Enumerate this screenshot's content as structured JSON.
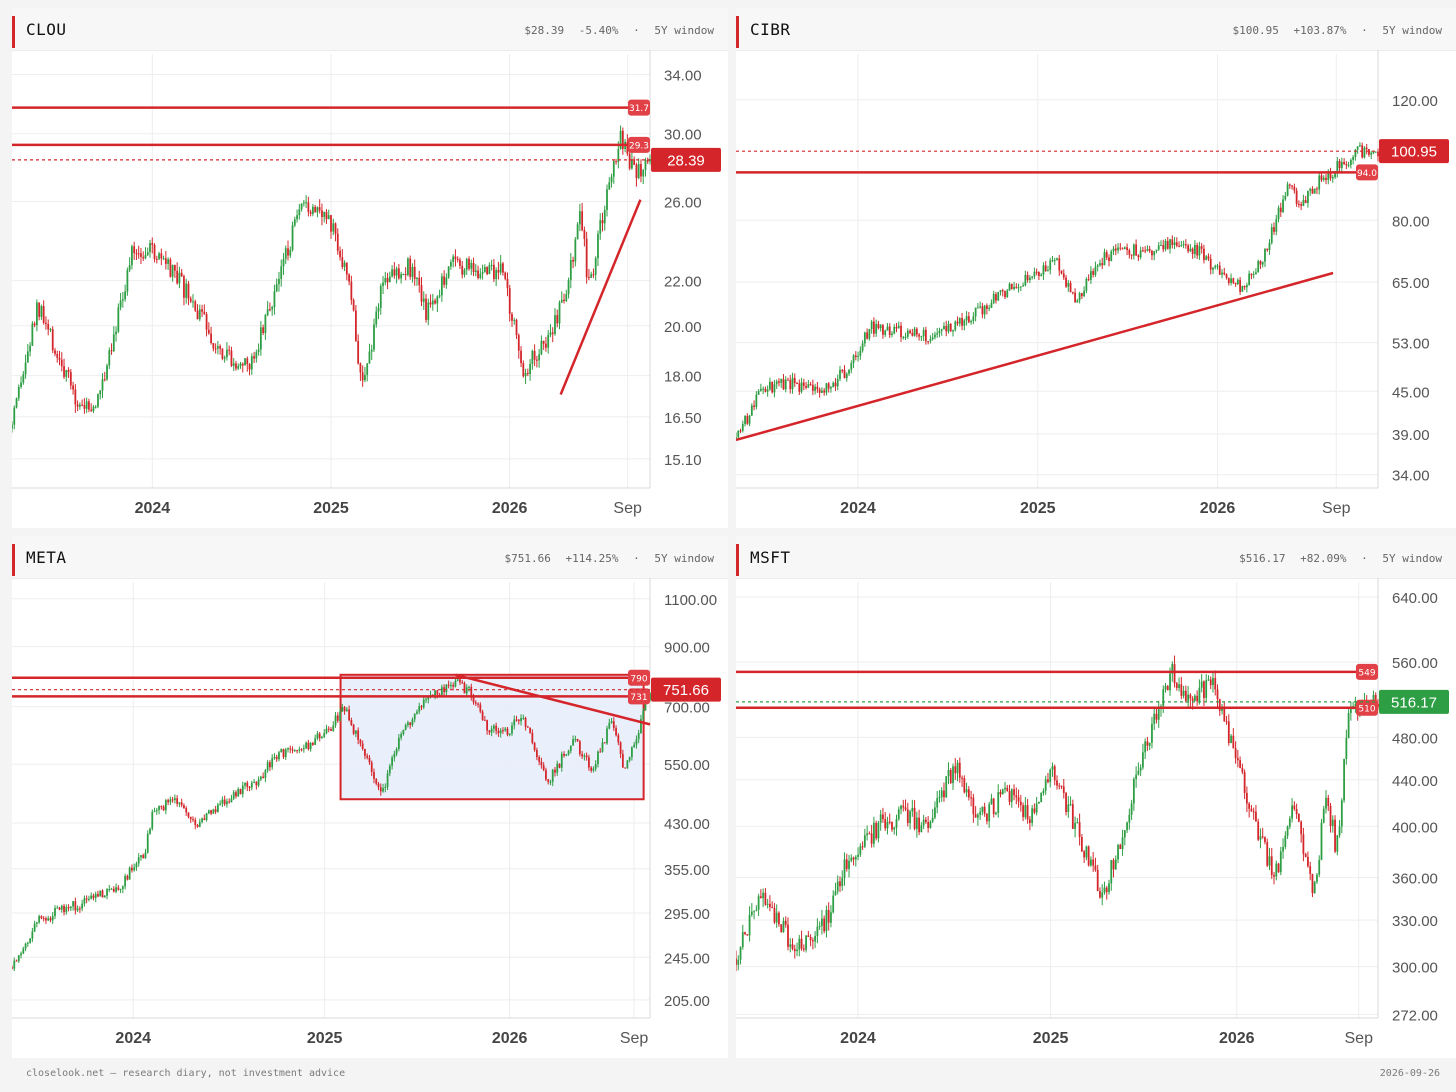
{
  "footer": {
    "left": "closelook.net — research diary, not investment advice",
    "right": "2026-09-26"
  },
  "colors": {
    "accent": "#d4262a",
    "up": "#2e9e44",
    "down": "#d4262a",
    "box_fill": "#e6ecfb",
    "grid": "#eeeeee"
  },
  "panels": [
    {
      "ticker": "CLOU",
      "price": "$28.39",
      "change": "-5.40%",
      "sep": "·",
      "window": "5Y window"
    },
    {
      "ticker": "CIBR",
      "price": "$100.95",
      "change": "+103.87%",
      "sep": "·",
      "window": "5Y window"
    },
    {
      "ticker": "META",
      "price": "$751.66",
      "change": "+114.25%",
      "sep": "·",
      "window": "5Y window"
    },
    {
      "ticker": "MSFT",
      "price": "$516.17",
      "change": "+82.09%",
      "sep": "·",
      "window": "5Y window"
    }
  ],
  "chart_data": [
    {
      "type": "line",
      "ticker": "CLOU",
      "scale": "log",
      "ylim": [
        14.2,
        35.5
      ],
      "yticks": [
        15.1,
        16.5,
        18.0,
        20.0,
        22.0,
        26.0,
        30.0,
        34.0
      ],
      "ytick_labels": [
        "15.10",
        "16.50",
        "18.00",
        "20.00",
        "22.00",
        "26.00",
        "30.00",
        "34.00"
      ],
      "xticks": [
        {
          "t": 0.22,
          "label": "2024"
        },
        {
          "t": 0.5,
          "label": "2025"
        },
        {
          "t": 0.78,
          "label": "2026"
        },
        {
          "t": 0.965,
          "label": "Sep"
        }
      ],
      "current_price": {
        "value": 28.39,
        "label": "28.39",
        "color": "#d4262a"
      },
      "levels": [
        {
          "value": 31.7,
          "label": "31.7"
        },
        {
          "value": 29.3,
          "label": "29.3"
        }
      ],
      "trendlines": [
        {
          "t1": 0.86,
          "v1": 17.3,
          "t2": 0.985,
          "v2": 26.1
        }
      ],
      "boxes": [],
      "series_keys": [
        [
          0,
          16.1
        ],
        [
          0.04,
          20.8
        ],
        [
          0.06,
          19.5
        ],
        [
          0.1,
          17.1
        ],
        [
          0.13,
          16.7
        ],
        [
          0.19,
          23.5
        ],
        [
          0.22,
          23.4
        ],
        [
          0.26,
          22.0
        ],
        [
          0.32,
          19.3
        ],
        [
          0.37,
          18.2
        ],
        [
          0.4,
          20.5
        ],
        [
          0.45,
          25.3
        ],
        [
          0.48,
          26.0
        ],
        [
          0.51,
          24.0
        ],
        [
          0.53,
          21.5
        ],
        [
          0.55,
          17.4
        ],
        [
          0.58,
          22.0
        ],
        [
          0.62,
          22.8
        ],
        [
          0.65,
          20.6
        ],
        [
          0.69,
          23.0
        ],
        [
          0.73,
          22.4
        ],
        [
          0.77,
          22.5
        ],
        [
          0.8,
          18.2
        ],
        [
          0.84,
          19.5
        ],
        [
          0.87,
          21.5
        ],
        [
          0.89,
          25.5
        ],
        [
          0.905,
          21.5
        ],
        [
          0.93,
          26.0
        ],
        [
          0.955,
          29.8
        ],
        [
          0.975,
          27.5
        ],
        [
          1.0,
          28.39
        ]
      ]
    },
    {
      "type": "line",
      "ticker": "CIBR",
      "scale": "log",
      "ylim": [
        32.5,
        140
      ],
      "yticks": [
        34.0,
        39.0,
        45.0,
        53.0,
        65.0,
        80.0,
        120.0
      ],
      "ytick_labels": [
        "34.00",
        "39.00",
        "45.00",
        "53.00",
        "65.00",
        "80.00",
        "120.00"
      ],
      "xticks": [
        {
          "t": 0.19,
          "label": "2024"
        },
        {
          "t": 0.47,
          "label": "2025"
        },
        {
          "t": 0.75,
          "label": "2026"
        },
        {
          "t": 0.935,
          "label": "Sep"
        }
      ],
      "current_price": {
        "value": 100.95,
        "label": "100.95",
        "color": "#d4262a"
      },
      "levels": [
        {
          "value": 94.0,
          "label": "94.0"
        }
      ],
      "trendlines": [
        {
          "t1": 0.0,
          "v1": 38.2,
          "t2": 0.93,
          "v2": 67.0
        }
      ],
      "boxes": [],
      "series_keys": [
        [
          0,
          38.5
        ],
        [
          0.04,
          45.0
        ],
        [
          0.08,
          46.5
        ],
        [
          0.13,
          44.5
        ],
        [
          0.18,
          49.0
        ],
        [
          0.21,
          56.0
        ],
        [
          0.25,
          55.0
        ],
        [
          0.3,
          54.0
        ],
        [
          0.35,
          56.5
        ],
        [
          0.4,
          61.0
        ],
        [
          0.45,
          66.0
        ],
        [
          0.5,
          70.0
        ],
        [
          0.53,
          60.0
        ],
        [
          0.56,
          69.0
        ],
        [
          0.6,
          73.0
        ],
        [
          0.65,
          71.0
        ],
        [
          0.68,
          75.0
        ],
        [
          0.72,
          72.0
        ],
        [
          0.76,
          66.0
        ],
        [
          0.79,
          64.0
        ],
        [
          0.82,
          70.0
        ],
        [
          0.86,
          90.0
        ],
        [
          0.88,
          84.0
        ],
        [
          0.91,
          92.0
        ],
        [
          0.94,
          96.0
        ],
        [
          0.97,
          101.0
        ],
        [
          1.0,
          100.95
        ]
      ]
    },
    {
      "type": "line",
      "ticker": "META",
      "scale": "log",
      "ylim": [
        190,
        1180
      ],
      "yticks": [
        205.0,
        245.0,
        295.0,
        355.0,
        430.0,
        550.0,
        700.0,
        900.0,
        1100.0
      ],
      "ytick_labels": [
        "205.00",
        "245.00",
        "295.00",
        "355.00",
        "430.00",
        "550.00",
        "700.00",
        "900.00",
        "1100.00"
      ],
      "xticks": [
        {
          "t": 0.19,
          "label": "2024"
        },
        {
          "t": 0.49,
          "label": "2025"
        },
        {
          "t": 0.78,
          "label": "2026"
        },
        {
          "t": 0.975,
          "label": "Sep"
        }
      ],
      "current_price": {
        "value": 751.66,
        "label": "751.66",
        "color": "#d4262a"
      },
      "levels": [
        {
          "value": 790,
          "label": "790"
        },
        {
          "value": 731,
          "label": "731"
        }
      ],
      "trendlines": [
        {
          "t1": 0.695,
          "v1": 800,
          "t2": 1.0,
          "v2": 650
        }
      ],
      "boxes": [
        {
          "t1": 0.515,
          "v1": 475,
          "t2": 0.99,
          "v2": 800
        }
      ],
      "series_keys": [
        [
          0,
          235
        ],
        [
          0.04,
          285
        ],
        [
          0.08,
          300
        ],
        [
          0.12,
          310
        ],
        [
          0.17,
          330
        ],
        [
          0.21,
          385
        ],
        [
          0.22,
          455
        ],
        [
          0.26,
          470
        ],
        [
          0.29,
          430
        ],
        [
          0.33,
          470
        ],
        [
          0.38,
          510
        ],
        [
          0.42,
          575
        ],
        [
          0.46,
          590
        ],
        [
          0.5,
          640
        ],
        [
          0.52,
          700
        ],
        [
          0.55,
          580
        ],
        [
          0.58,
          490
        ],
        [
          0.61,
          620
        ],
        [
          0.65,
          720
        ],
        [
          0.69,
          780
        ],
        [
          0.72,
          740
        ],
        [
          0.74,
          650
        ],
        [
          0.77,
          620
        ],
        [
          0.8,
          680
        ],
        [
          0.84,
          510
        ],
        [
          0.88,
          610
        ],
        [
          0.91,
          540
        ],
        [
          0.94,
          660
        ],
        [
          0.96,
          540
        ],
        [
          0.98,
          620
        ],
        [
          1.0,
          751.66
        ]
      ]
    },
    {
      "type": "line",
      "ticker": "MSFT",
      "scale": "log",
      "ylim": [
        270,
        660
      ],
      "yticks": [
        272.0,
        300.0,
        330.0,
        360.0,
        400.0,
        440.0,
        480.0,
        560.0,
        640.0
      ],
      "ytick_labels": [
        "272.00",
        "300.00",
        "330.00",
        "360.00",
        "400.00",
        "440.00",
        "480.00",
        "560.00",
        "640.00"
      ],
      "xticks": [
        {
          "t": 0.19,
          "label": "2024"
        },
        {
          "t": 0.49,
          "label": "2025"
        },
        {
          "t": 0.78,
          "label": "2026"
        },
        {
          "t": 0.97,
          "label": "Sep"
        }
      ],
      "current_price": {
        "value": 516.17,
        "label": "516.17",
        "color": "#2e9e44"
      },
      "levels": [
        {
          "value": 549,
          "label": "549"
        },
        {
          "value": 510,
          "label": "510"
        }
      ],
      "trendlines": [],
      "boxes": [],
      "series_keys": [
        [
          0,
          305
        ],
        [
          0.04,
          350
        ],
        [
          0.07,
          325
        ],
        [
          0.1,
          310
        ],
        [
          0.14,
          330
        ],
        [
          0.17,
          370
        ],
        [
          0.22,
          400
        ],
        [
          0.26,
          410
        ],
        [
          0.3,
          400
        ],
        [
          0.34,
          455
        ],
        [
          0.38,
          405
        ],
        [
          0.42,
          430
        ],
        [
          0.46,
          410
        ],
        [
          0.49,
          450
        ],
        [
          0.53,
          400
        ],
        [
          0.57,
          345
        ],
        [
          0.6,
          390
        ],
        [
          0.63,
          460
        ],
        [
          0.66,
          515
        ],
        [
          0.68,
          550
        ],
        [
          0.71,
          510
        ],
        [
          0.74,
          545
        ],
        [
          0.77,
          480
        ],
        [
          0.81,
          400
        ],
        [
          0.84,
          360
        ],
        [
          0.87,
          420
        ],
        [
          0.9,
          350
        ],
        [
          0.92,
          430
        ],
        [
          0.935,
          380
        ],
        [
          0.955,
          500
        ],
        [
          1.0,
          516.17
        ]
      ]
    }
  ]
}
